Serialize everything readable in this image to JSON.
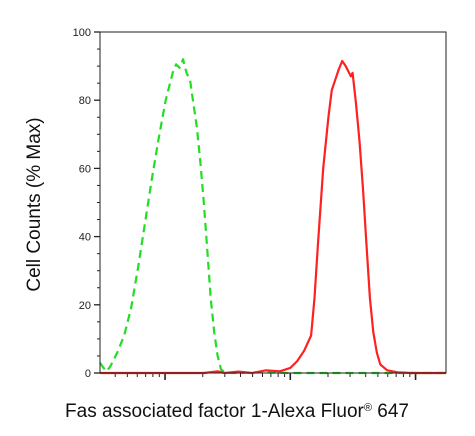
{
  "chart_data": {
    "type": "line",
    "title": "",
    "xlabel_main": "Fas associated factor 1-Alexa Fluor",
    "xlabel_sup": "®",
    "xlabel_suffix": " 647",
    "ylabel": "Cell Counts (% Max)",
    "y_ticks": [
      "0",
      "20",
      "40",
      "60",
      "80",
      "100"
    ],
    "ylim": [
      0,
      100
    ],
    "xscale": "log",
    "xlim": [
      0,
      1
    ],
    "grid": false,
    "legend": "none",
    "series": [
      {
        "style": "dashed",
        "color": "#22dd22",
        "x": [
          0.0,
          0.01,
          0.02,
          0.03,
          0.05,
          0.07,
          0.09,
          0.11,
          0.13,
          0.15,
          0.17,
          0.19,
          0.21,
          0.22,
          0.23,
          0.24,
          0.245,
          0.25,
          0.26,
          0.27,
          0.28,
          0.29,
          0.3,
          0.31,
          0.32,
          0.33,
          0.34,
          0.35,
          0.36,
          0.37,
          0.38,
          0.4,
          0.45,
          0.55,
          0.65,
          0.8,
          1.0
        ],
        "y": [
          3.0,
          1.5,
          0.5,
          2.0,
          6.0,
          11.0,
          19.0,
          31.0,
          44.0,
          57.0,
          69.0,
          80.0,
          88.0,
          90.5,
          89.5,
          92.0,
          90.0,
          88.0,
          86.0,
          79.0,
          72.0,
          62.0,
          50.0,
          36.0,
          22.0,
          12.0,
          5.0,
          1.0,
          0.3,
          0.1,
          0.0,
          0.0,
          0.2,
          0.0,
          0.0,
          0.0,
          0.0
        ]
      },
      {
        "style": "solid",
        "color": "#ff2020",
        "x": [
          0.0,
          0.3,
          0.34,
          0.36,
          0.4,
          0.44,
          0.48,
          0.52,
          0.55,
          0.57,
          0.59,
          0.61,
          0.62,
          0.63,
          0.645,
          0.66,
          0.67,
          0.68,
          0.69,
          0.7,
          0.71,
          0.72,
          0.725,
          0.73,
          0.74,
          0.75,
          0.76,
          0.77,
          0.78,
          0.79,
          0.8,
          0.81,
          0.83,
          0.86,
          0.9,
          1.0
        ],
        "y": [
          0.0,
          0.0,
          0.5,
          0.0,
          0.4,
          0.0,
          0.8,
          0.5,
          1.5,
          3.5,
          6.5,
          11.0,
          22.0,
          38.0,
          60.0,
          75.0,
          83.0,
          86.0,
          89.0,
          91.5,
          90.0,
          88.0,
          87.0,
          88.0,
          79.0,
          68.0,
          54.0,
          38.0,
          22.0,
          12.0,
          6.0,
          2.5,
          0.8,
          0.2,
          0.0,
          0.0
        ]
      }
    ]
  }
}
